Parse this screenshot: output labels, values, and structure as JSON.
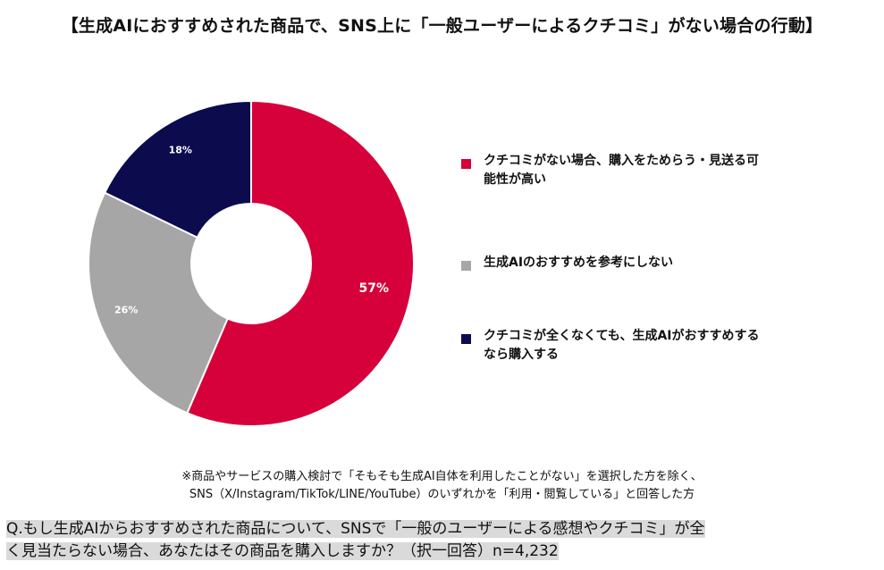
{
  "title": "【生成AIにおすすめされた商品で、SNS上に「一般ユーザーによるクチコミ」がない場合の行動】",
  "chart_data": {
    "type": "pie",
    "donut": true,
    "slices": [
      {
        "label": "クチコミがない場合、購入をためらう・見送る可能性が高い",
        "value": 57,
        "value_label": "57%",
        "color": "#d6003a"
      },
      {
        "label": "生成AIのおすすめを参考にしない",
        "value": 26,
        "value_label": "26%",
        "color": "#a6a6a6"
      },
      {
        "label": "クチコミが全くなくても、生成AIがおすすめするなら購入する",
        "value": 18,
        "value_label": "18%",
        "color": "#0b0b4e"
      }
    ],
    "legend_position": "right"
  },
  "legend": {
    "items": [
      {
        "line1": "クチコミがない場合、購入をためらう・見送る可",
        "line2": "能性が高い",
        "color": "#d6003a"
      },
      {
        "line1": "生成AIのおすすめを参考にしない",
        "line2": "",
        "color": "#a6a6a6"
      },
      {
        "line1": "クチコミが全くなくても、生成AIがおすすめする",
        "line2": "なら購入する",
        "color": "#0b0b4e"
      }
    ]
  },
  "note": {
    "line1": "※商品やサービスの購入検討で「そもそも生成AI自体を利用したことがない」を選択した方を除く、",
    "line2": "SNS（X/Instagram/TikTok/LINE/YouTube）のいずれかを「利用・閲覧している」と回答した方"
  },
  "question": {
    "line1": "Q.もし生成AIからおすすめされた商品について、SNSで「一般のユーザーによる感想やクチコミ」が全",
    "line2": "く見当たらない場合、あなたはその商品を購入しますか？（択一回答）n=4,232"
  }
}
